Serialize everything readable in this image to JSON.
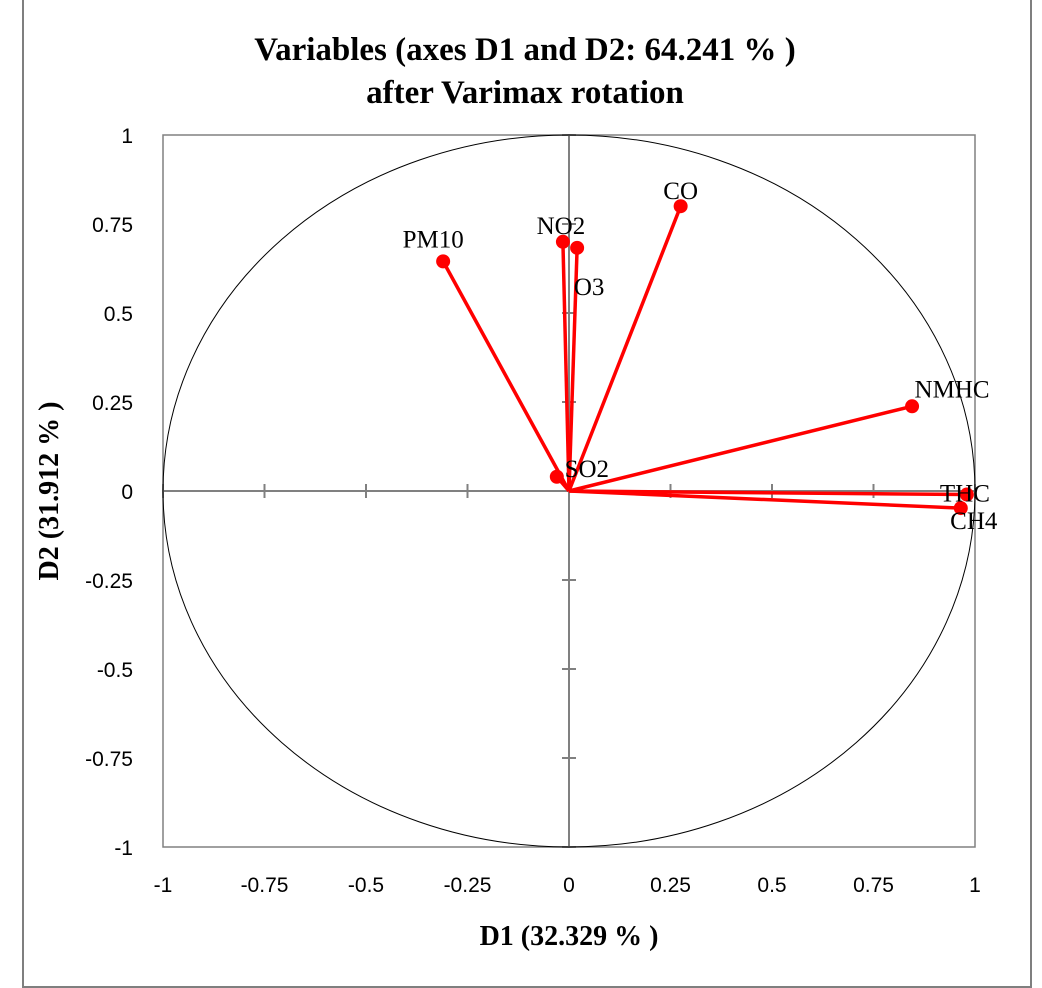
{
  "chart_data": {
    "type": "scatter",
    "title": "Variables (axes D1 and D2: 64.241 % )",
    "subtitle": "after Varimax rotation",
    "xlabel": "D1 (32.329 % )",
    "ylabel": "D2 (31.912 % )",
    "xlim": [
      -1,
      1
    ],
    "ylim": [
      -1,
      1
    ],
    "xticks": [
      "-1",
      "-0.75",
      "-0.5",
      "-0.25",
      "0",
      "0.25",
      "0.5",
      "0.75",
      "1"
    ],
    "yticks": [
      "1",
      "0.75",
      "0.5",
      "0.25",
      "0",
      "-0.25",
      "-0.5",
      "-0.75",
      "-1"
    ],
    "unit_circle": true,
    "vectors_from_origin": true,
    "marker_color": "#ff0000",
    "points": [
      {
        "label": "PM10",
        "x": -0.31,
        "y": 0.645
      },
      {
        "label": "NO2",
        "x": -0.015,
        "y": 0.7
      },
      {
        "label": "O3",
        "x": 0.02,
        "y": 0.683
      },
      {
        "label": "CO",
        "x": 0.275,
        "y": 0.8
      },
      {
        "label": "NMHC",
        "x": 0.845,
        "y": 0.238
      },
      {
        "label": "SO2",
        "x": -0.03,
        "y": 0.04
      },
      {
        "label": "THC",
        "x": 0.98,
        "y": -0.01
      },
      {
        "label": "CH4",
        "x": 0.965,
        "y": -0.048
      }
    ]
  }
}
